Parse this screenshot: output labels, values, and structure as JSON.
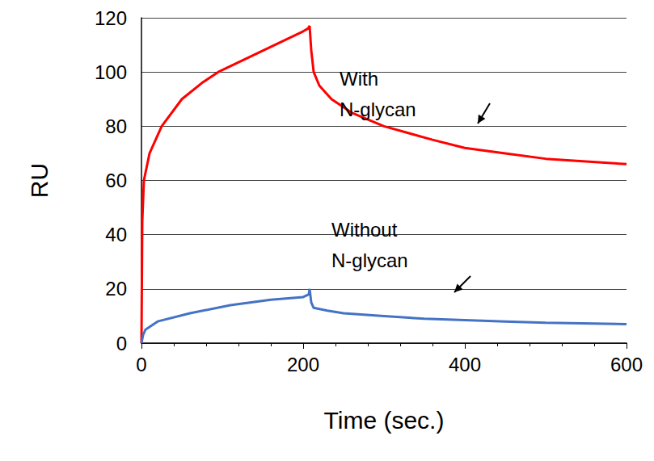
{
  "chart_data": {
    "type": "line",
    "x_label": "Time (sec.)",
    "y_label": "RU",
    "xlim": [
      0,
      600
    ],
    "xticks": [
      0,
      200,
      400,
      600
    ],
    "ylim": [
      0,
      120
    ],
    "yticks": [
      0,
      20,
      40,
      60,
      80,
      100,
      120
    ],
    "grid": true,
    "series": [
      {
        "name": "With\nN-glycan",
        "color": "#ff0000",
        "x": [
          0,
          1,
          3,
          10,
          25,
          50,
          75,
          95,
          130,
          165,
          200,
          206,
          208,
          210,
          213,
          220,
          235,
          260,
          300,
          360,
          400,
          450,
          500,
          550,
          600
        ],
        "values": [
          0,
          45,
          60,
          70,
          80,
          90,
          96,
          100,
          105,
          110,
          115,
          116,
          117,
          108,
          100,
          95,
          90,
          85,
          80,
          75,
          72,
          70,
          68,
          67,
          66
        ]
      },
      {
        "name": "Without\nN-glycan",
        "color": "#4472c4",
        "x": [
          0,
          2,
          5,
          20,
          60,
          110,
          160,
          200,
          207,
          208,
          210,
          213,
          230,
          250,
          300,
          350,
          400,
          450,
          500,
          600
        ],
        "values": [
          0,
          3,
          5,
          8,
          11,
          14,
          16,
          17,
          18,
          20,
          15,
          13,
          12,
          11,
          10,
          9,
          8.5,
          8,
          7.5,
          7
        ]
      }
    ]
  }
}
